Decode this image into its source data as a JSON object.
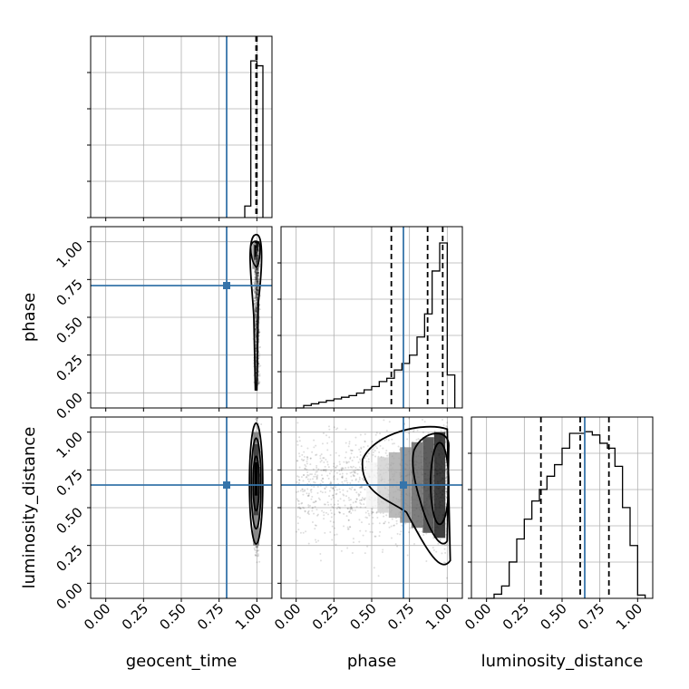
{
  "chart_data": {
    "type": "corner",
    "parameters": [
      "geocent_time",
      "phase",
      "luminosity_distance"
    ],
    "ticks": [
      "0.00",
      "0.25",
      "0.50",
      "0.75",
      "1.00"
    ],
    "axis_range": [
      -0.1,
      1.1
    ],
    "grid": true,
    "colors": {
      "truth": "#3674aa",
      "hist": "#000000",
      "density": "#000000"
    },
    "truths": {
      "geocent_time": 0.8,
      "phase": 0.71,
      "luminosity_distance": 0.65
    },
    "quantiles": {
      "geocent_time": [
        0.995,
        0.998,
        1.0
      ],
      "phase": [
        0.63,
        0.87,
        0.97
      ],
      "luminosity_distance": [
        0.36,
        0.62,
        0.81
      ]
    },
    "histograms": {
      "geocent_time": {
        "edges": [
          0.92,
          0.96,
          1.0,
          1.04
        ],
        "counts": [
          0.07,
          0.95,
          0.92
        ]
      },
      "phase": {
        "edges": [
          0.0,
          0.05,
          0.1,
          0.15,
          0.2,
          0.25,
          0.3,
          0.35,
          0.4,
          0.45,
          0.5,
          0.55,
          0.6,
          0.65,
          0.7,
          0.75,
          0.8,
          0.85,
          0.9,
          0.95,
          1.0,
          1.05
        ],
        "counts": [
          0.0,
          0.015,
          0.025,
          0.035,
          0.045,
          0.055,
          0.065,
          0.075,
          0.09,
          0.11,
          0.13,
          0.16,
          0.18,
          0.23,
          0.27,
          0.32,
          0.43,
          0.57,
          0.83,
          1.0,
          0.2
        ]
      },
      "luminosity_distance": {
        "edges": [
          0.0,
          0.05,
          0.1,
          0.15,
          0.2,
          0.25,
          0.3,
          0.35,
          0.4,
          0.45,
          0.5,
          0.55,
          0.6,
          0.65,
          0.7,
          0.75,
          0.8,
          0.85,
          0.9,
          0.95,
          1.0,
          1.05
        ],
        "counts": [
          0.0,
          0.025,
          0.075,
          0.22,
          0.36,
          0.48,
          0.59,
          0.66,
          0.74,
          0.81,
          0.91,
          1.0,
          1.0,
          1.01,
          0.99,
          0.94,
          0.91,
          0.8,
          0.55,
          0.32,
          0.02
        ]
      }
    }
  }
}
